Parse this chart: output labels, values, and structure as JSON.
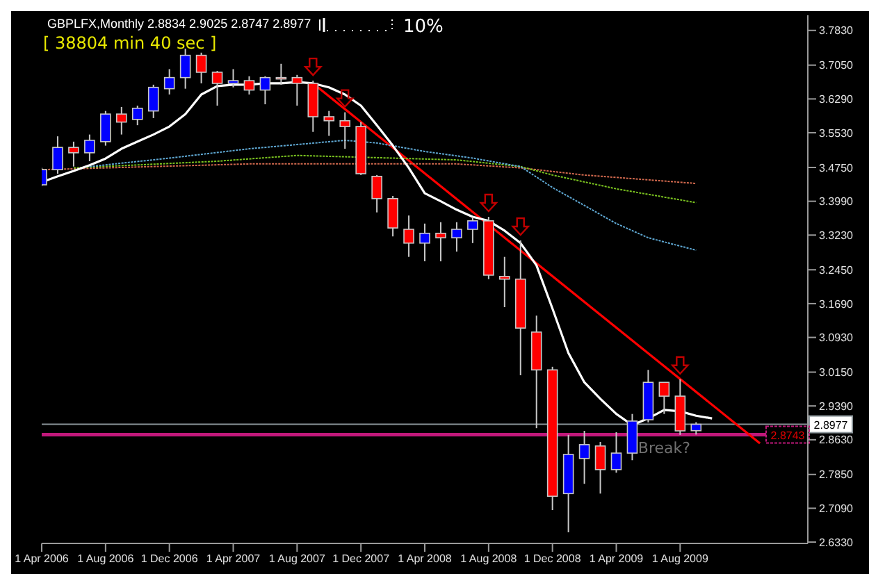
{
  "chart_data": {
    "type": "candlestick",
    "title": "GBPLFX,Monthly  2.8834 2.9025 2.8747 2.8977",
    "annotations": [
      "[ 38804 min 40 sec ]",
      "10%",
      "Break?"
    ],
    "xlim": [
      "2006-04",
      "2010-04"
    ],
    "xticks": [
      {
        "value": "2006-04",
        "label": "1 Apr 2006"
      },
      {
        "value": "2006-08",
        "label": "1 Aug 2006"
      },
      {
        "value": "2006-12",
        "label": "1 Dec 2006"
      },
      {
        "value": "2007-04",
        "label": "1 Apr 2007"
      },
      {
        "value": "2007-08",
        "label": "1 Aug 2007"
      },
      {
        "value": "2007-12",
        "label": "1 Dec 2007"
      },
      {
        "value": "2008-04",
        "label": "1 Apr 2008"
      },
      {
        "value": "2008-08",
        "label": "1 Aug 2008"
      },
      {
        "value": "2008-12",
        "label": "1 Dec 2008"
      },
      {
        "value": "2009-04",
        "label": "1 Apr 2009"
      },
      {
        "value": "2009-08",
        "label": "1 Aug 2009"
      }
    ],
    "ylim": [
      2.63,
      3.817
    ],
    "yticks": [
      {
        "value": 3.783,
        "label": "3.7830"
      },
      {
        "value": 3.705,
        "label": "3.7050"
      },
      {
        "value": 3.629,
        "label": "3.6290"
      },
      {
        "value": 3.553,
        "label": "3.5530"
      },
      {
        "value": 3.475,
        "label": "3.4750"
      },
      {
        "value": 3.399,
        "label": "3.3990"
      },
      {
        "value": 3.323,
        "label": "3.3230"
      },
      {
        "value": 3.245,
        "label": "3.2450"
      },
      {
        "value": 3.169,
        "label": "3.1690"
      },
      {
        "value": 3.093,
        "label": "3.0930"
      },
      {
        "value": 3.015,
        "label": "3.0150"
      },
      {
        "value": 2.939,
        "label": "2.9390"
      },
      {
        "value": 2.863,
        "label": "2.8630"
      },
      {
        "value": 2.785,
        "label": "2.7850"
      },
      {
        "value": 2.709,
        "label": "2.7090"
      },
      {
        "value": 2.633,
        "label": "2.6330"
      }
    ],
    "ref_lines": [
      {
        "axis": "y",
        "value": 2.8977,
        "label": "2.8977",
        "color": "#8a9499"
      },
      {
        "axis": "y",
        "value": 2.8743,
        "label": "2.8743",
        "color": "#c0187a"
      }
    ],
    "series": [
      {
        "x": [
          "2006-04",
          "2006-05",
          "2006-06",
          "2006-07",
          "2006-08",
          "2006-09",
          "2006-10",
          "2006-11",
          "2006-12",
          "2007-01",
          "2007-02",
          "2007-03",
          "2007-04",
          "2007-05",
          "2007-06",
          "2007-07",
          "2007-08",
          "2007-09",
          "2007-10",
          "2007-11",
          "2007-12",
          "2008-01",
          "2008-02",
          "2008-03",
          "2008-04",
          "2008-05",
          "2008-06",
          "2008-07",
          "2008-08",
          "2008-09",
          "2008-10",
          "2008-11",
          "2008-12",
          "2009-01",
          "2009-02",
          "2009-03",
          "2009-04",
          "2009-05",
          "2009-06",
          "2009-07",
          "2009-08",
          "2009-09"
        ],
        "ohlc": [
          [
            3.436,
            3.474,
            3.433,
            3.47
          ],
          [
            3.47,
            3.545,
            3.461,
            3.52
          ],
          [
            3.52,
            3.533,
            3.477,
            3.508
          ],
          [
            3.508,
            3.549,
            3.489,
            3.536
          ],
          [
            3.533,
            3.602,
            3.524,
            3.595
          ],
          [
            3.595,
            3.611,
            3.549,
            3.577
          ],
          [
            3.583,
            3.614,
            3.57,
            3.608
          ],
          [
            3.602,
            3.661,
            3.586,
            3.655
          ],
          [
            3.652,
            3.696,
            3.639,
            3.677
          ],
          [
            3.677,
            3.742,
            3.652,
            3.727
          ],
          [
            3.727,
            3.733,
            3.664,
            3.689
          ],
          [
            3.689,
            3.692,
            3.614,
            3.664
          ],
          [
            3.664,
            3.696,
            3.655,
            3.67
          ],
          [
            3.67,
            3.68,
            3.639,
            3.649
          ],
          [
            3.649,
            3.68,
            3.617,
            3.677
          ],
          [
            3.677,
            3.708,
            3.661,
            3.676
          ],
          [
            3.677,
            3.683,
            3.614,
            3.664
          ],
          [
            3.664,
            3.67,
            3.555,
            3.589
          ],
          [
            3.589,
            3.602,
            3.546,
            3.58
          ],
          [
            3.58,
            3.599,
            3.517,
            3.567
          ],
          [
            3.567,
            3.577,
            3.458,
            3.461
          ],
          [
            3.455,
            3.458,
            3.374,
            3.405
          ],
          [
            3.405,
            3.411,
            3.32,
            3.339
          ],
          [
            3.336,
            3.367,
            3.274,
            3.305
          ],
          [
            3.305,
            3.349,
            3.264,
            3.327
          ],
          [
            3.327,
            3.352,
            3.264,
            3.317
          ],
          [
            3.317,
            3.352,
            3.286,
            3.336
          ],
          [
            3.336,
            3.364,
            3.305,
            3.355
          ],
          [
            3.355,
            3.364,
            3.224,
            3.233
          ],
          [
            3.23,
            3.274,
            3.161,
            3.224
          ],
          [
            3.224,
            3.311,
            3.008,
            3.114
          ],
          [
            3.105,
            3.142,
            2.889,
            3.02
          ],
          [
            3.02,
            3.027,
            2.705,
            2.736
          ],
          [
            2.742,
            2.874,
            2.655,
            2.83
          ],
          [
            2.821,
            2.883,
            2.764,
            2.852
          ],
          [
            2.849,
            2.858,
            2.742,
            2.796
          ],
          [
            2.796,
            2.88,
            2.789,
            2.833
          ],
          [
            2.833,
            2.921,
            2.817,
            2.905
          ],
          [
            2.908,
            3.02,
            2.902,
            2.992
          ],
          [
            2.992,
            2.992,
            2.921,
            2.961
          ],
          [
            2.961,
            2.999,
            2.874,
            2.883
          ],
          [
            2.8834,
            2.9025,
            2.8747,
            2.8977
          ]
        ],
        "colors": [
          "#0000ff",
          "#0000ff",
          "#ff0000",
          "#0000ff",
          "#0000ff",
          "#ff0000",
          "#0000ff",
          "#0000ff",
          "#0000ff",
          "#0000ff",
          "#ff0000",
          "#ff0000",
          "#0000ff",
          "#ff0000",
          "#0000ff",
          "#ff0000",
          "#ff0000",
          "#ff0000",
          "#ff0000",
          "#ff0000",
          "#ff0000",
          "#ff0000",
          "#ff0000",
          "#ff0000",
          "#0000ff",
          "#ff0000",
          "#0000ff",
          "#0000ff",
          "#ff0000",
          "#ff0000",
          "#ff0000",
          "#ff0000",
          "#ff0000",
          "#0000ff",
          "#0000ff",
          "#ff0000",
          "#0000ff",
          "#0000ff",
          "#0000ff",
          "#ff0000",
          "#ff0000",
          "#0000ff"
        ]
      },
      {
        "type": "line",
        "color": "#ffffff",
        "line_style": "solid",
        "x": [
          "2006-04",
          "2006-05",
          "2006-06",
          "2006-07",
          "2006-08",
          "2006-09",
          "2006-10",
          "2006-11",
          "2006-12",
          "2007-01",
          "2007-02",
          "2007-03",
          "2007-04",
          "2007-05",
          "2007-06",
          "2007-07",
          "2007-08",
          "2007-09",
          "2007-10",
          "2007-11",
          "2007-12",
          "2008-01",
          "2008-02",
          "2008-03",
          "2008-04",
          "2008-05",
          "2008-06",
          "2008-07",
          "2008-08",
          "2008-09",
          "2008-10",
          "2008-11",
          "2008-12",
          "2009-01",
          "2009-02",
          "2009-03",
          "2009-04",
          "2009-05",
          "2009-06",
          "2009-07",
          "2009-08",
          "2009-09",
          "2009-10"
        ],
        "values": [
          3.442,
          3.455,
          3.467,
          3.48,
          3.495,
          3.517,
          3.533,
          3.549,
          3.567,
          3.595,
          3.639,
          3.658,
          3.661,
          3.661,
          3.664,
          3.664,
          3.667,
          3.664,
          3.655,
          3.639,
          3.614,
          3.57,
          3.524,
          3.474,
          3.417,
          3.399,
          3.38,
          3.364,
          3.355,
          3.333,
          3.305,
          3.255,
          3.158,
          3.058,
          2.992,
          2.955,
          2.921,
          2.896,
          2.911,
          2.93,
          2.927,
          2.917,
          2.911
        ]
      },
      {
        "type": "line",
        "color": "#5fa8d3",
        "line_style": "dotted",
        "x": [
          "2006-07",
          "2006-12",
          "2007-05",
          "2007-11",
          "2008-01",
          "2008-04",
          "2008-07",
          "2008-10",
          "2008-12",
          "2009-04",
          "2009-06",
          "2009-09"
        ],
        "values": [
          3.477,
          3.496,
          3.517,
          3.536,
          3.53,
          3.511,
          3.496,
          3.477,
          3.43,
          3.349,
          3.317,
          3.289
        ]
      },
      {
        "type": "line",
        "color": "#7cc520",
        "line_style": "dotted",
        "x": [
          "2006-06",
          "2007-03",
          "2007-08",
          "2008-06",
          "2008-10",
          "2008-12",
          "2009-04",
          "2009-09"
        ],
        "values": [
          3.474,
          3.489,
          3.502,
          3.492,
          3.477,
          3.458,
          3.427,
          3.396
        ]
      },
      {
        "type": "line",
        "color": "#d2694e",
        "line_style": "dotted",
        "x": [
          "2006-04",
          "2007-05",
          "2008-06",
          "2008-10",
          "2009-02",
          "2009-09"
        ],
        "values": [
          3.47,
          3.483,
          3.483,
          3.474,
          3.458,
          3.439
        ]
      },
      {
        "type": "line",
        "color": "#ff0000",
        "line_style": "solid",
        "x": [
          "2007-09",
          "2010-01"
        ],
        "values": [
          3.664,
          2.855
        ]
      }
    ]
  }
}
